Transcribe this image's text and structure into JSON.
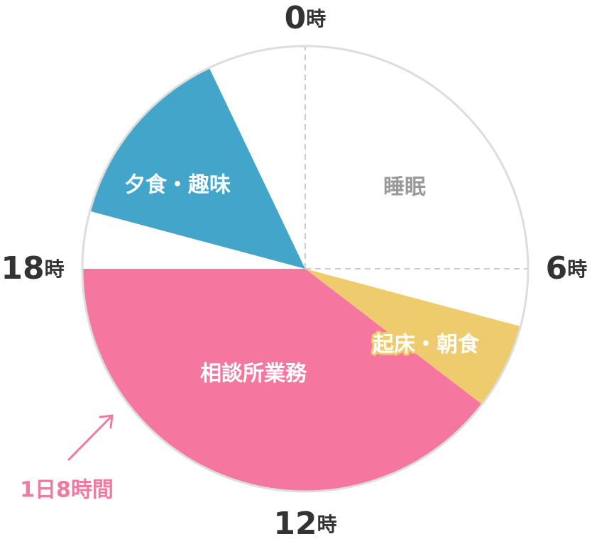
{
  "chart_data": {
    "type": "pie",
    "start_angle_hour": 0,
    "total_hours": 24,
    "slices": [
      {
        "label": "睡眠",
        "start": 0,
        "end": 7,
        "color": "#ffffff",
        "label_color": "#999999"
      },
      {
        "label": "起床・朝食",
        "start": 7,
        "end": 8.5,
        "color": "#eecb6d",
        "label_color": "#ffffff",
        "label_outline": "#eecb6d"
      },
      {
        "label": "相談所業務",
        "start": 8.5,
        "end": 18,
        "color": "#f5779f",
        "label_color": "#ffffff"
      },
      {
        "label": "",
        "start": 18,
        "end": 19,
        "color": "#ffffff",
        "label_color": "#ffffff"
      },
      {
        "label": "夕食・趣味",
        "start": 19,
        "end": 22.3,
        "color": "#42a5c9",
        "label_color": "#ffffff"
      },
      {
        "label": "",
        "start": 22.3,
        "end": 24,
        "color": "#ffffff",
        "label_color": "#ffffff"
      }
    ],
    "hour_labels": [
      {
        "hour": 0,
        "num": "0",
        "unit": "時"
      },
      {
        "hour": 6,
        "num": "6",
        "unit": "時"
      },
      {
        "hour": 12,
        "num": "12",
        "unit": "時"
      },
      {
        "hour": 18,
        "num": "18",
        "unit": "時"
      }
    ],
    "dashed_guides_hours": [
      0,
      6
    ],
    "outline_color": "#dddddd",
    "guide_color": "#cccccc",
    "annotation": {
      "text": "1日8時間",
      "color": "#f07aa0"
    }
  }
}
